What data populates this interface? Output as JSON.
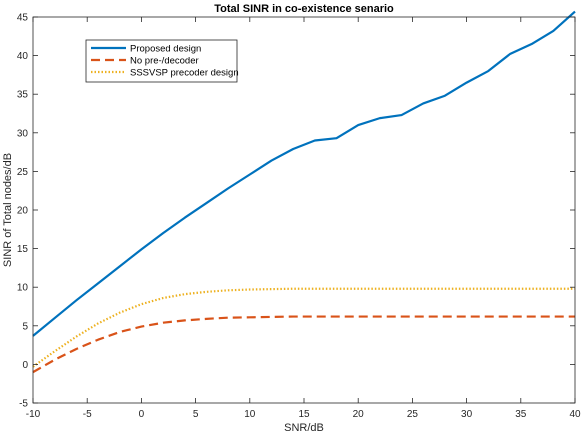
{
  "chart_data": {
    "type": "line",
    "title": "Total SINR in co-existence senario",
    "xlabel": "SNR/dB",
    "ylabel": "SINR of Total nodes/dB",
    "xlim": [
      -10,
      40
    ],
    "ylim": [
      -5,
      45
    ],
    "xticks": [
      "-10",
      "-5",
      "0",
      "5",
      "10",
      "15",
      "20",
      "25",
      "30",
      "35",
      "40"
    ],
    "yticks": [
      "-5",
      "0",
      "5",
      "10",
      "15",
      "20",
      "25",
      "30",
      "35",
      "40",
      "45"
    ],
    "grid": false,
    "legend_position": "top-left",
    "x": [
      -10,
      -8,
      -6,
      -4,
      -2,
      0,
      2,
      4,
      6,
      8,
      10,
      12,
      14,
      16,
      18,
      20,
      22,
      24,
      26,
      28,
      30,
      32,
      34,
      36,
      38,
      40
    ],
    "series": [
      {
        "name": "Proposed design",
        "color": "#0072BD",
        "style": "solid",
        "values": [
          3.7,
          6.0,
          8.3,
          10.5,
          12.7,
          14.9,
          17.0,
          19.0,
          20.9,
          22.8,
          24.6,
          26.4,
          27.9,
          29.0,
          29.3,
          31.0,
          31.9,
          32.3,
          33.8,
          34.8,
          36.5,
          38.0,
          40.2,
          41.5,
          43.2,
          45.7
        ]
      },
      {
        "name": "No pre-/decoder",
        "color": "#D95319",
        "style": "dashed",
        "values": [
          -1.0,
          0.6,
          2.0,
          3.2,
          4.2,
          4.9,
          5.4,
          5.7,
          5.9,
          6.05,
          6.1,
          6.15,
          6.2,
          6.2,
          6.2,
          6.2,
          6.2,
          6.2,
          6.2,
          6.2,
          6.2,
          6.2,
          6.2,
          6.2,
          6.2,
          6.2
        ]
      },
      {
        "name": "SSSVSP precoder design",
        "color": "#EDB120",
        "style": "dotted",
        "values": [
          -0.3,
          1.7,
          3.6,
          5.3,
          6.7,
          7.8,
          8.6,
          9.1,
          9.4,
          9.6,
          9.7,
          9.75,
          9.8,
          9.8,
          9.8,
          9.8,
          9.8,
          9.8,
          9.8,
          9.8,
          9.8,
          9.8,
          9.8,
          9.8,
          9.8,
          9.8
        ]
      }
    ]
  }
}
